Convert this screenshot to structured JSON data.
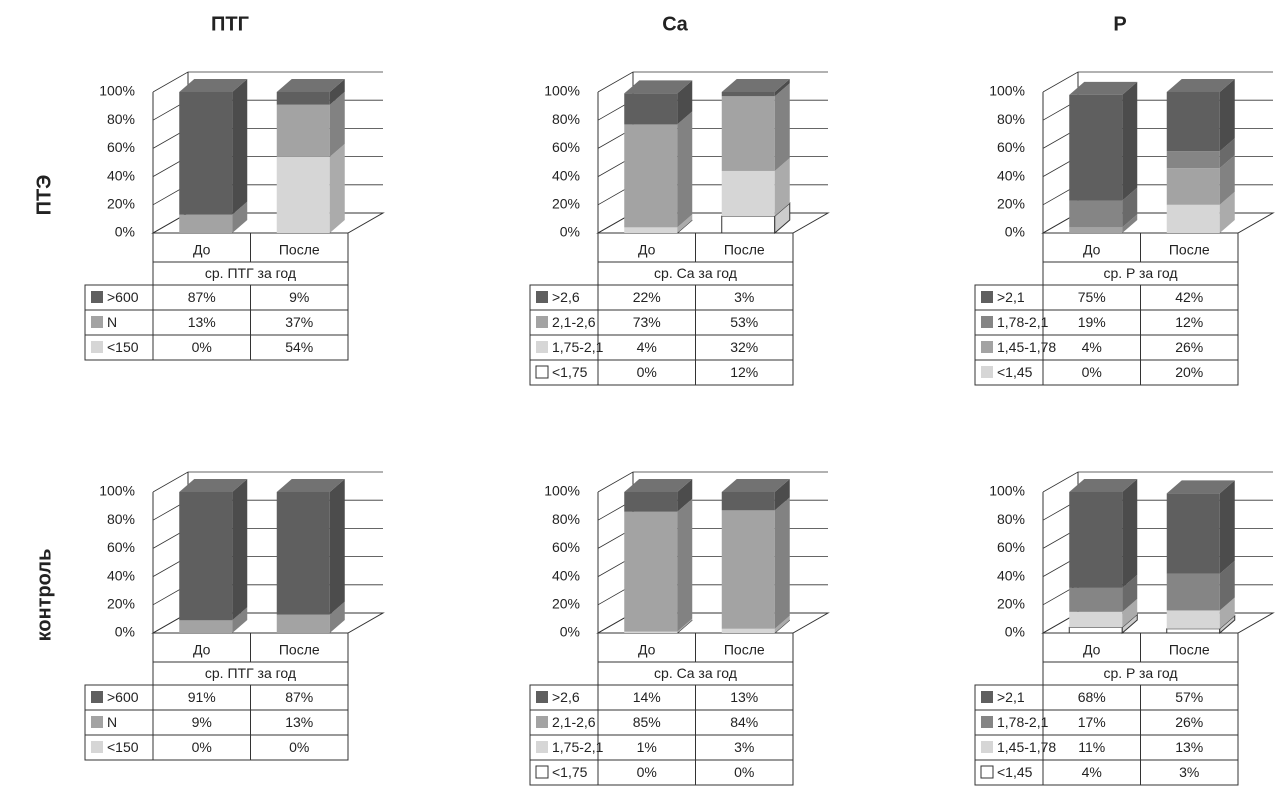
{
  "column_titles": [
    "ПТГ",
    "Ca",
    "P"
  ],
  "row_titles": [
    "ПТЭ",
    "контроль"
  ],
  "chart_data": [
    {
      "type": "bar",
      "stacked": true,
      "categories": [
        "До",
        "После"
      ],
      "x_label": "ср. ПТГ за год",
      "ylim": [
        0,
        100
      ],
      "yticks": [
        {
          "value": 0,
          "label": "0%"
        },
        {
          "value": 20,
          "label": "20%"
        },
        {
          "value": 40,
          "label": "40%"
        },
        {
          "value": 60,
          "label": "60%"
        },
        {
          "value": 80,
          "label": "80%"
        },
        {
          "value": 100,
          "label": "100%"
        }
      ],
      "series": [
        {
          "name": ">600",
          "color": "#5f5f5f",
          "values": [
            87,
            9
          ],
          "value_labels": [
            "87%",
            "9%"
          ]
        },
        {
          "name": "N",
          "color": "#a3a3a3",
          "values": [
            13,
            37
          ],
          "value_labels": [
            "13%",
            "37%"
          ]
        },
        {
          "name": "<150",
          "color": "#d6d6d6",
          "values": [
            0,
            54
          ],
          "value_labels": [
            "0%",
            "54%"
          ]
        }
      ]
    },
    {
      "type": "bar",
      "stacked": true,
      "categories": [
        "До",
        "После"
      ],
      "x_label": "ср. Ca за год",
      "ylim": [
        0,
        100
      ],
      "yticks": [
        {
          "value": 0,
          "label": "0%"
        },
        {
          "value": 20,
          "label": "20%"
        },
        {
          "value": 40,
          "label": "40%"
        },
        {
          "value": 60,
          "label": "60%"
        },
        {
          "value": 80,
          "label": "80%"
        },
        {
          "value": 100,
          "label": "100%"
        }
      ],
      "series": [
        {
          "name": ">2,6",
          "color": "#5f5f5f",
          "values": [
            22,
            3
          ],
          "value_labels": [
            "22%",
            "3%"
          ]
        },
        {
          "name": "2,1-2,6",
          "color": "#a3a3a3",
          "values": [
            73,
            53
          ],
          "value_labels": [
            "73%",
            "53%"
          ]
        },
        {
          "name": "1,75-2,1",
          "color": "#d6d6d6",
          "values": [
            4,
            32
          ],
          "value_labels": [
            "4%",
            "32%"
          ]
        },
        {
          "name": "<1,75",
          "color": "#ffffff",
          "values": [
            0,
            12
          ],
          "value_labels": [
            "0%",
            "12%"
          ]
        }
      ]
    },
    {
      "type": "bar",
      "stacked": true,
      "categories": [
        "До",
        "После"
      ],
      "x_label": "ср. P за год",
      "ylim": [
        0,
        100
      ],
      "yticks": [
        {
          "value": 0,
          "label": "0%"
        },
        {
          "value": 20,
          "label": "20%"
        },
        {
          "value": 40,
          "label": "40%"
        },
        {
          "value": 60,
          "label": "60%"
        },
        {
          "value": 80,
          "label": "80%"
        },
        {
          "value": 100,
          "label": "100%"
        }
      ],
      "series": [
        {
          "name": ">2,1",
          "color": "#5f5f5f",
          "values": [
            75,
            42
          ],
          "value_labels": [
            "75%",
            "42%"
          ]
        },
        {
          "name": "1,78-2,1",
          "color": "#858585",
          "values": [
            19,
            12
          ],
          "value_labels": [
            "19%",
            "12%"
          ]
        },
        {
          "name": "1,45-1,78",
          "color": "#a3a3a3",
          "values": [
            4,
            26
          ],
          "value_labels": [
            "4%",
            "26%"
          ]
        },
        {
          "name": "<1,45",
          "color": "#d6d6d6",
          "values": [
            0,
            20
          ],
          "value_labels": [
            "0%",
            "20%"
          ]
        }
      ]
    },
    {
      "type": "bar",
      "stacked": true,
      "categories": [
        "До",
        "После"
      ],
      "x_label": "ср. ПТГ за год",
      "ylim": [
        0,
        100
      ],
      "yticks": [
        {
          "value": 0,
          "label": "0%"
        },
        {
          "value": 20,
          "label": "20%"
        },
        {
          "value": 40,
          "label": "40%"
        },
        {
          "value": 60,
          "label": "60%"
        },
        {
          "value": 80,
          "label": "80%"
        },
        {
          "value": 100,
          "label": "100%"
        }
      ],
      "series": [
        {
          "name": ">600",
          "color": "#5f5f5f",
          "values": [
            91,
            87
          ],
          "value_labels": [
            "91%",
            "87%"
          ]
        },
        {
          "name": "N",
          "color": "#a3a3a3",
          "values": [
            9,
            13
          ],
          "value_labels": [
            "9%",
            "13%"
          ]
        },
        {
          "name": "<150",
          "color": "#d6d6d6",
          "values": [
            0,
            0
          ],
          "value_labels": [
            "0%",
            "0%"
          ]
        }
      ]
    },
    {
      "type": "bar",
      "stacked": true,
      "categories": [
        "До",
        "После"
      ],
      "x_label": "ср. Ca за год",
      "ylim": [
        0,
        100
      ],
      "yticks": [
        {
          "value": 0,
          "label": "0%"
        },
        {
          "value": 20,
          "label": "20%"
        },
        {
          "value": 40,
          "label": "40%"
        },
        {
          "value": 60,
          "label": "60%"
        },
        {
          "value": 80,
          "label": "80%"
        },
        {
          "value": 100,
          "label": "100%"
        }
      ],
      "series": [
        {
          "name": ">2,6",
          "color": "#5f5f5f",
          "values": [
            14,
            13
          ],
          "value_labels": [
            "14%",
            "13%"
          ]
        },
        {
          "name": "2,1-2,6",
          "color": "#a3a3a3",
          "values": [
            85,
            84
          ],
          "value_labels": [
            "85%",
            "84%"
          ]
        },
        {
          "name": "1,75-2,1",
          "color": "#d6d6d6",
          "values": [
            1,
            3
          ],
          "value_labels": [
            "1%",
            "3%"
          ]
        },
        {
          "name": "<1,75",
          "color": "#ffffff",
          "values": [
            0,
            0
          ],
          "value_labels": [
            "0%",
            "0%"
          ]
        }
      ]
    },
    {
      "type": "bar",
      "stacked": true,
      "categories": [
        "До",
        "После"
      ],
      "x_label": "ср. P за год",
      "ylim": [
        0,
        100
      ],
      "yticks": [
        {
          "value": 0,
          "label": "0%"
        },
        {
          "value": 20,
          "label": "20%"
        },
        {
          "value": 40,
          "label": "40%"
        },
        {
          "value": 60,
          "label": "60%"
        },
        {
          "value": 80,
          "label": "80%"
        },
        {
          "value": 100,
          "label": "100%"
        }
      ],
      "series": [
        {
          "name": ">2,1",
          "color": "#5f5f5f",
          "values": [
            68,
            57
          ],
          "value_labels": [
            "68%",
            "57%"
          ]
        },
        {
          "name": "1,78-2,1",
          "color": "#858585",
          "values": [
            17,
            26
          ],
          "value_labels": [
            "17%",
            "26%"
          ]
        },
        {
          "name": "1,45-1,78",
          "color": "#d6d6d6",
          "values": [
            11,
            13
          ],
          "value_labels": [
            "11%",
            "13%"
          ]
        },
        {
          "name": "<1,45",
          "color": "#ffffff",
          "values": [
            4,
            3
          ],
          "value_labels": [
            "4%",
            "3%"
          ]
        }
      ]
    }
  ]
}
